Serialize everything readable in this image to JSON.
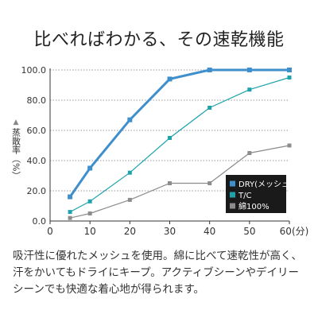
{
  "title": "比べればわかる、その速乾機能",
  "description": "吸汗性に優れたメッシュを使用。綿に比べて速乾性が高く、汗をかいてもドライにキープ。アクティブシーンやデイリーシーンでも快適な着心地が得られます。",
  "chart_data": {
    "type": "line",
    "title": "",
    "ylabel": "蒸散率（%）",
    "xlabel": "",
    "x_tick_labels": [
      "0",
      "10",
      "20",
      "30",
      "40",
      "50",
      "60(分)"
    ],
    "y_tick_labels": [
      "0.0",
      "20.0",
      "40.0",
      "60.0",
      "80.0",
      "100.0"
    ],
    "xlim": [
      0,
      60
    ],
    "ylim": [
      0,
      100
    ],
    "grid": "horizontal dotted",
    "legend_position": "bottom-right",
    "x": [
      5,
      10,
      20,
      30,
      40,
      50,
      60
    ],
    "series": [
      {
        "name": "DRY(メッシュ)",
        "color": "#3f8fcd",
        "values": [
          16,
          35,
          67,
          94,
          100,
          100,
          100
        ]
      },
      {
        "name": "T/C",
        "color": "#1ea3ad",
        "values": [
          6,
          13,
          32,
          55,
          75,
          87,
          95
        ]
      },
      {
        "name": "綿100%",
        "color": "#8c8c8c",
        "values": [
          2,
          5,
          14,
          25,
          25,
          45,
          50
        ]
      }
    ]
  }
}
